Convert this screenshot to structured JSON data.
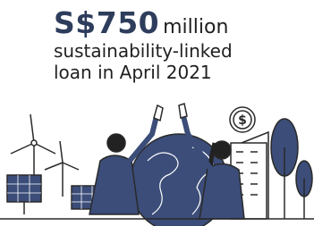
{
  "headline": {
    "amount": "S$750",
    "unit": "million"
  },
  "lines": [
    "sustainability-linked",
    "loan in April 2021"
  ]
}
